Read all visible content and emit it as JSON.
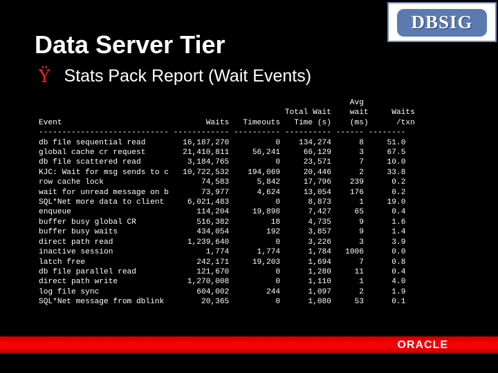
{
  "slide": {
    "title": "Data Server Tier",
    "bullet_glyph": "Ÿ",
    "bullet_text": "Stats Pack Report (Wait Events)",
    "logo_text": "DBSIG",
    "footer_logo_text": "ORACLE"
  },
  "report": {
    "header": [
      "                                                                   Avg",
      "                                                     Total Wait    wait     Waits",
      "Event                               Waits   Timeouts   Time (s)    (ms)      /txn",
      "---------------------------- ------------ ---------- ---------- ------ --------"
    ],
    "columns": [
      "Event",
      "Waits",
      "Timeouts",
      "Total Wait Time (s)",
      "Avg wait (ms)",
      "Waits /txn"
    ],
    "rows": [
      [
        "db file sequential read",
        "16,187,270",
        "0",
        "134,274",
        "8",
        "51.0"
      ],
      [
        "global cache cr request",
        "21,410,811",
        "56,241",
        "66,129",
        "3",
        "67.5"
      ],
      [
        "db file scattered read",
        "3,184,765",
        "0",
        "23,571",
        "7",
        "10.0"
      ],
      [
        "KJC: Wait for msg sends to c",
        "10,722,532",
        "194,069",
        "20,446",
        "2",
        "33.8"
      ],
      [
        "row cache lock",
        "74,583",
        "5,842",
        "17,796",
        "239",
        "0.2"
      ],
      [
        "wait for unread message on b",
        "73,977",
        "4,624",
        "13,054",
        "176",
        "0.2"
      ],
      [
        "SQL*Net more data to client",
        "6,021,483",
        "0",
        "8,873",
        "1",
        "19.0"
      ],
      [
        "enqueue",
        "114,204",
        "19,898",
        "7,427",
        "65",
        "0.4"
      ],
      [
        "buffer busy global CR",
        "516,382",
        "18",
        "4,735",
        "9",
        "1.6"
      ],
      [
        "buffer busy waits",
        "434,054",
        "192",
        "3,857",
        "9",
        "1.4"
      ],
      [
        "direct path read",
        "1,239,640",
        "0",
        "3,226",
        "3",
        "3.9"
      ],
      [
        "inactive session",
        "1,774",
        "1,774",
        "1,784",
        "1006",
        "0.0"
      ],
      [
        "latch free",
        "242,171",
        "19,203",
        "1,694",
        "7",
        "0.8"
      ],
      [
        "db file parallel read",
        "121,670",
        "0",
        "1,280",
        "11",
        "0.4"
      ],
      [
        "direct path write",
        "1,270,008",
        "0",
        "1,110",
        "1",
        "4.0"
      ],
      [
        "log file sync",
        "604,002",
        "244",
        "1,097",
        "2",
        "1.9"
      ],
      [
        "SQL*Net message from dblink",
        "20,365",
        "0",
        "1,080",
        "53",
        "0.1"
      ]
    ]
  }
}
